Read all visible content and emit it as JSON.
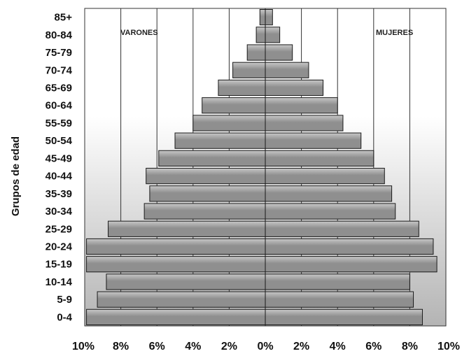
{
  "chart_data": {
    "type": "bar",
    "orientation": "horizontal",
    "subtype": "population-pyramid",
    "ylabel": "Grupos de edad",
    "categories": [
      "85+",
      "80-84",
      "75-79",
      "70-74",
      "65-69",
      "60-64",
      "55-59",
      "50-54",
      "45-49",
      "40-44",
      "35-39",
      "30-34",
      "25-29",
      "20-24",
      "15-19",
      "10-14",
      "5-9",
      "0-4"
    ],
    "x_ticks": [
      "10%",
      "8%",
      "6%",
      "4%",
      "2%",
      "0%",
      "2%",
      "4%",
      "6%",
      "8%",
      "10%"
    ],
    "xlim": [
      -10,
      10
    ],
    "grid": true,
    "series": [
      {
        "name": "VARONES",
        "side": "left",
        "values": [
          0.3,
          0.5,
          1.0,
          1.8,
          2.6,
          3.5,
          4.0,
          5.0,
          5.9,
          6.6,
          6.4,
          6.7,
          8.7,
          9.9,
          9.9,
          8.8,
          9.3,
          9.9
        ]
      },
      {
        "name": "MUJERES",
        "side": "right",
        "values": [
          0.4,
          0.8,
          1.5,
          2.4,
          3.2,
          4.0,
          4.3,
          5.3,
          6.0,
          6.6,
          7.0,
          7.2,
          8.5,
          9.3,
          9.5,
          8.0,
          8.2,
          8.7
        ]
      }
    ],
    "colors": {
      "bar_fill": "#8f8f8f",
      "bar_highlight": "#c8c8c8",
      "bar_border": "#1a1a1a",
      "grid": "#333333",
      "background_top": "#ffffff",
      "background_bottom": "#b4b4b4"
    }
  }
}
